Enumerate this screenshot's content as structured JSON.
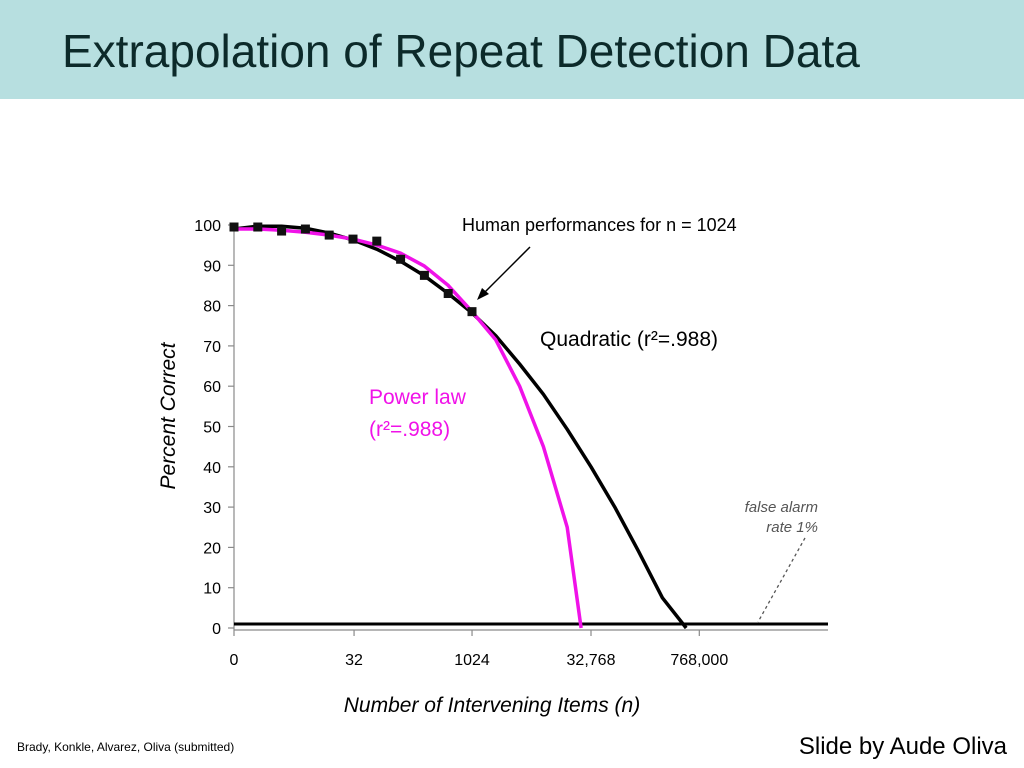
{
  "slide": {
    "title": "Extrapolation of Repeat Detection Data",
    "citation": "Brady, Konkle, Alvarez, Oliva (submitted)",
    "credit": "Slide by Aude Oliva"
  },
  "chart_data": {
    "type": "line",
    "xlabel": "Number of Intervening Items (n)",
    "ylabel": "Percent Correct",
    "x_scale": "log2(n+1)",
    "x_ticks": [
      0,
      32,
      1024,
      32768,
      768000
    ],
    "x_tick_labels": [
      "0",
      "32",
      "1024",
      "32,768",
      "768,000"
    ],
    "y_ticks": [
      0,
      10,
      20,
      30,
      40,
      50,
      60,
      70,
      80,
      90,
      100
    ],
    "ylim": [
      0,
      100
    ],
    "series": [
      {
        "name": "Human performances for n = 1024",
        "kind": "markers",
        "color": "#111111",
        "x": [
          0,
          1,
          3,
          7,
          15,
          31,
          63,
          127,
          255,
          511,
          1023
        ],
        "y": [
          99.5,
          99.5,
          98.5,
          99,
          97.5,
          96.5,
          96,
          91.5,
          87.5,
          83,
          78.5
        ]
      },
      {
        "name": "Quadratic",
        "label": "Quadratic (r²=.988)",
        "kind": "line",
        "color": "#000000",
        "x": [
          0,
          1,
          3,
          7,
          15,
          31,
          63,
          127,
          255,
          511,
          1023,
          2047,
          4095,
          8191,
          16383,
          32767,
          65535,
          131071,
          262143,
          524287
        ],
        "y": [
          99,
          99.7,
          99.7,
          99.2,
          98,
          96.3,
          94,
          91,
          87.4,
          83,
          78.2,
          72.5,
          65.5,
          58,
          49.3,
          40,
          30,
          19,
          7.5,
          0
        ]
      },
      {
        "name": "Power law",
        "label_line1": "Power law",
        "label_line2": "(r²=.988)",
        "kind": "line",
        "color": "#f012e8",
        "x": [
          0,
          1,
          3,
          7,
          15,
          31,
          63,
          127,
          255,
          511,
          1023,
          2047,
          4095,
          8191,
          16383,
          24575
        ],
        "y": [
          99,
          99,
          98.7,
          98.2,
          97.5,
          96.5,
          95,
          93,
          89.8,
          85,
          78.5,
          71.5,
          60,
          45,
          25,
          0
        ]
      },
      {
        "name": "false alarm rate 1%",
        "label_line1": "false alarm",
        "label_line2": "rate 1%",
        "kind": "line",
        "color": "#000000",
        "x": [
          0,
          768000
        ],
        "y": [
          1,
          1
        ]
      }
    ]
  }
}
